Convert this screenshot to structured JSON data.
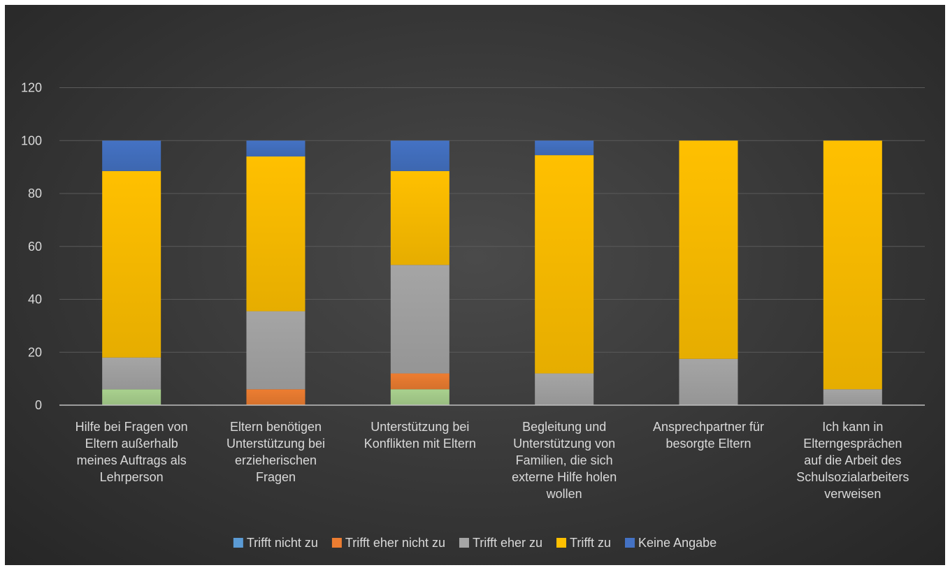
{
  "chart_data": {
    "type": "bar",
    "stacked": true,
    "title": "",
    "xlabel": "",
    "ylabel": "",
    "ylim": [
      0,
      120
    ],
    "yticks": [
      0,
      20,
      40,
      60,
      80,
      100,
      120
    ],
    "grid": true,
    "legend_position": "bottom",
    "categories": [
      [
        "Hilfe bei Fragen von",
        "Eltern außerhalb",
        "meines Auftrags als",
        "Lehrperson"
      ],
      [
        "Eltern benötigen",
        "Unterstützung bei",
        "erzieherischen",
        "Fragen"
      ],
      [
        "Unterstützung bei",
        "Konflikten mit Eltern"
      ],
      [
        "Begleitung und",
        "Unterstützung von",
        "Familien, die sich",
        "externe Hilfe holen",
        "wollen"
      ],
      [
        "Ansprechpartner für",
        "besorgte Eltern"
      ],
      [
        "Ich kann in",
        "Elterngesprächen",
        "auf die Arbeit des",
        "Schulsozialarbeiters",
        "verweisen"
      ]
    ],
    "series": [
      {
        "name": "",
        "color": "#a9d18e",
        "legend": false,
        "values": [
          6,
          0,
          6,
          0,
          0,
          0
        ]
      },
      {
        "name": "Trifft nicht zu",
        "color": "#5b9bd5",
        "legend": true,
        "values": [
          0,
          0,
          0,
          0,
          0,
          0
        ]
      },
      {
        "name": "Trifft eher nicht zu",
        "color": "#ed7d31",
        "legend": true,
        "values": [
          0,
          6,
          6,
          0,
          0,
          0
        ]
      },
      {
        "name": "Trifft eher zu",
        "color": "#a5a5a5",
        "legend": true,
        "values": [
          12,
          29.5,
          41,
          12,
          17.5,
          6
        ]
      },
      {
        "name": "Trifft zu",
        "color": "#ffc000",
        "legend": true,
        "values": [
          70.5,
          58.5,
          35.5,
          82.5,
          82.5,
          94
        ]
      },
      {
        "name": "Keine Angabe",
        "color": "#4472c4",
        "legend": true,
        "values": [
          11.5,
          6,
          11.5,
          5.5,
          0,
          0
        ]
      }
    ]
  }
}
